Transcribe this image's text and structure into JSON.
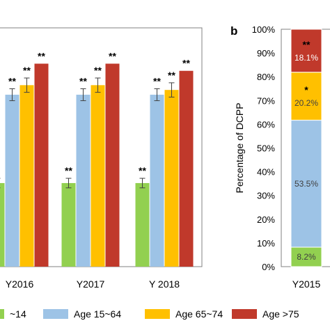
{
  "panels": {
    "b_label": "b"
  },
  "colors": {
    "age_0_14": "#92d050",
    "age_15_64": "#9dc3e6",
    "age_65_74": "#ffc000",
    "age_75_plus": "#c0392b",
    "axis": "#808080",
    "errorbar": "#404040"
  },
  "chart_data": [
    {
      "type": "bar",
      "panel": "a",
      "categories": [
        "Y2016",
        "Y2017",
        "Y 2018"
      ],
      "series": [
        {
          "name": "~14",
          "color_key": "age_0_14",
          "values": [
            0.35,
            0.35,
            0.35
          ],
          "errors": [
            0.04,
            0.04,
            0.04
          ],
          "annotations": [
            "",
            "**",
            "**"
          ]
        },
        {
          "name": "Age 15~64",
          "color_key": "age_15_64",
          "values": [
            0.72,
            0.72,
            0.72
          ],
          "errors": [
            0.05,
            0.05,
            0.05
          ],
          "annotations": [
            "**",
            "**",
            "**"
          ]
        },
        {
          "name": "Age 65~74",
          "color_key": "age_65_74",
          "values": [
            0.76,
            0.76,
            0.74
          ],
          "errors": [
            0.06,
            0.06,
            0.06
          ],
          "annotations": [
            "**",
            "**",
            "**"
          ]
        },
        {
          "name": "Age >75",
          "color_key": "age_75_plus",
          "values": [
            0.85,
            0.85,
            0.82
          ],
          "errors": [
            0.0,
            0.0,
            0.0
          ],
          "annotations": [
            "**",
            "**",
            "**"
          ]
        }
      ],
      "ylim": [
        0,
        1.0
      ],
      "grid": false
    },
    {
      "type": "bar",
      "panel": "b",
      "stacked": true,
      "categories": [
        "Y2015"
      ],
      "ylabel": "Percentage of DCPP",
      "yticks": [
        "0%",
        "10%",
        "20%",
        "30%",
        "40%",
        "50%",
        "60%",
        "70%",
        "80%",
        "90%",
        "100%"
      ],
      "ylim": [
        0,
        100
      ],
      "series": [
        {
          "name": "~14",
          "color_key": "age_0_14",
          "values": [
            8.2
          ],
          "label": "8.2%",
          "annotation": ""
        },
        {
          "name": "Age 15~64",
          "color_key": "age_15_64",
          "values": [
            53.5
          ],
          "label": "53.5%",
          "annotation": ""
        },
        {
          "name": "Age 65~74",
          "color_key": "age_65_74",
          "values": [
            20.2
          ],
          "label": "20.2%",
          "annotation": "*"
        },
        {
          "name": "Age >75",
          "color_key": "age_75_plus",
          "values": [
            18.1
          ],
          "label": "18.1%",
          "annotation": "**"
        }
      ]
    }
  ],
  "legend": {
    "position": "bottom",
    "items": [
      {
        "label": "~14",
        "color_key": "age_0_14"
      },
      {
        "label": "Age 15~64",
        "color_key": "age_15_64"
      },
      {
        "label": "Age 65~74",
        "color_key": "age_65_74"
      },
      {
        "label": "Age >75",
        "color_key": "age_75_plus"
      }
    ]
  }
}
